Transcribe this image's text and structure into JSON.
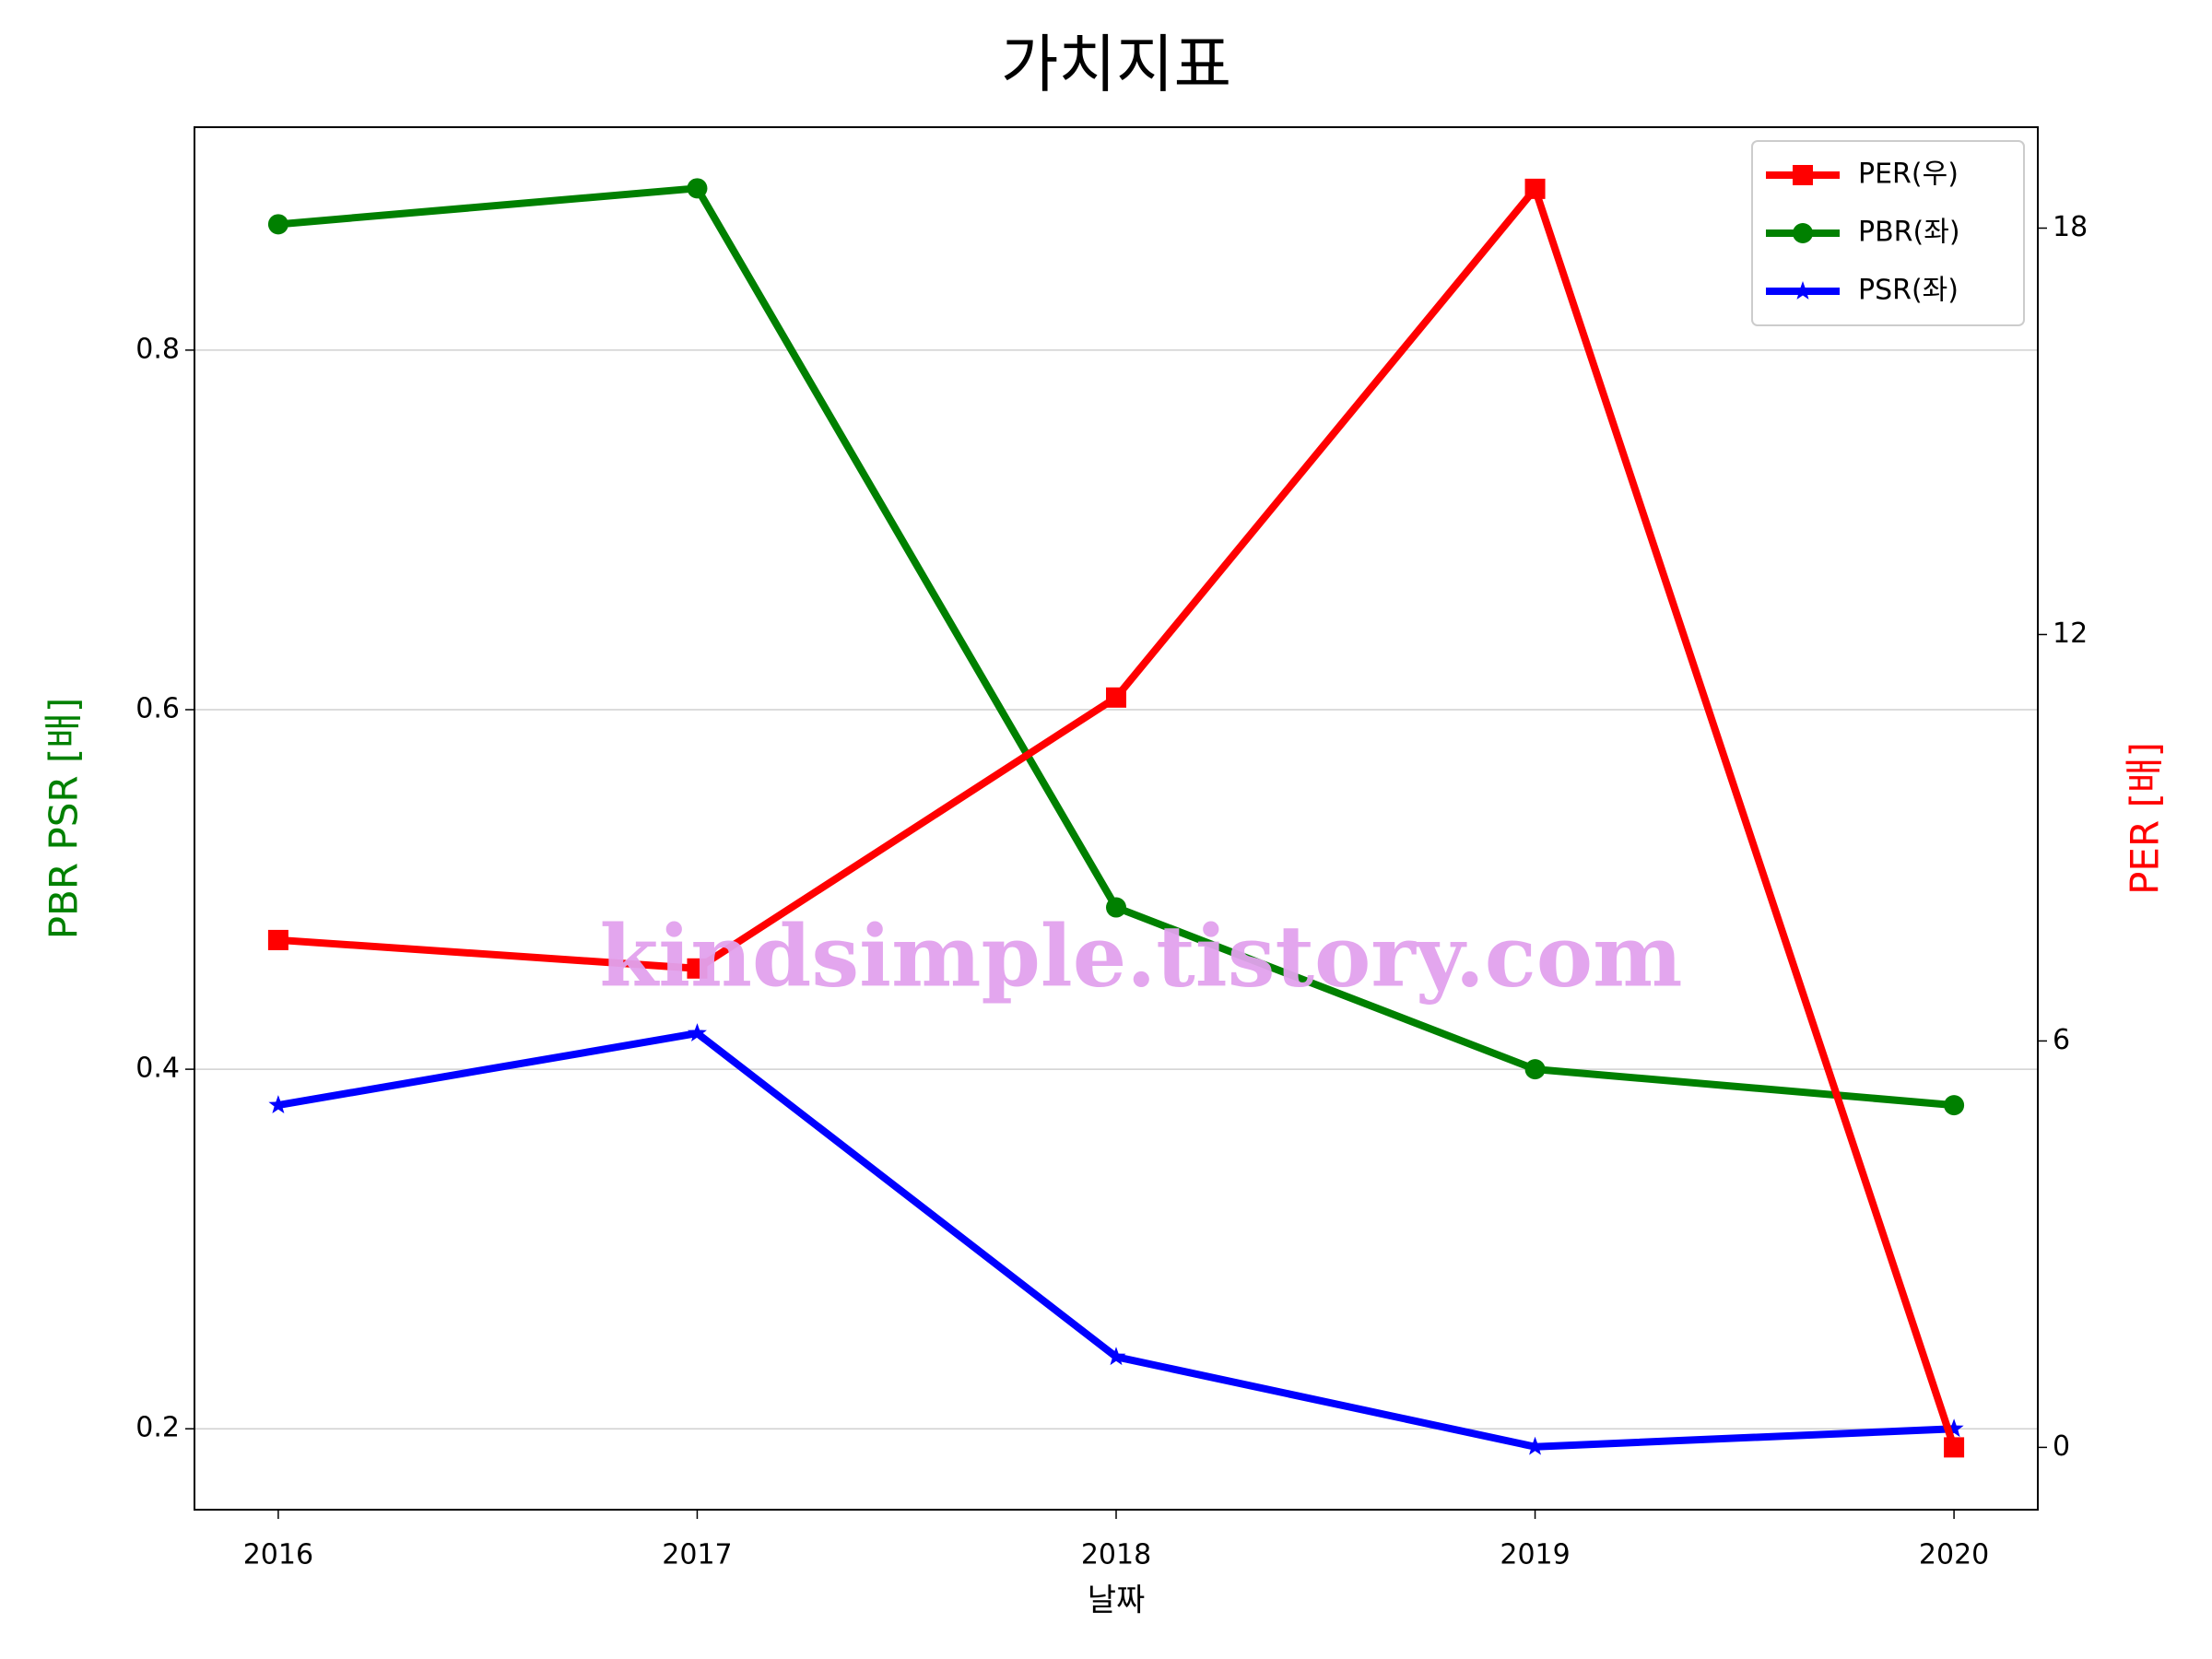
{
  "chart_data": {
    "type": "line",
    "title": "가치지표",
    "x": [
      2016,
      2017,
      2018,
      2019,
      2020
    ],
    "xlabel": "날짜",
    "ylabel": "PBR PSR [배]",
    "y2label": "PER [배]",
    "xlim": [
      2015.8,
      2020.2
    ],
    "xticks": [
      2016,
      2017,
      2018,
      2019,
      2020
    ],
    "ylim": [
      0.155,
      0.924
    ],
    "yticks": [
      0.2,
      0.4,
      0.6,
      0.8
    ],
    "y2lim": [
      -0.92,
      19.49
    ],
    "y2ticks": [
      0,
      6,
      12,
      18
    ],
    "grid": true,
    "legend": "upper right",
    "annotation": "kindsimple.tistory.com",
    "series": [
      {
        "name": "PER(우)",
        "color": "#ff0000",
        "marker": "square",
        "axis": "y2",
        "values": [
          7.49,
          7.07,
          11.07,
          18.58,
          0
        ]
      },
      {
        "name": "PBR(좌)",
        "color": "#008000",
        "marker": "circle",
        "values": [
          0.87,
          0.89,
          0.49,
          0.4,
          0.38
        ]
      },
      {
        "name": "PSR(좌)",
        "color": "#0000ff",
        "marker": "star",
        "values": [
          0.38,
          0.42,
          0.24,
          0.19,
          0.2
        ]
      }
    ]
  }
}
